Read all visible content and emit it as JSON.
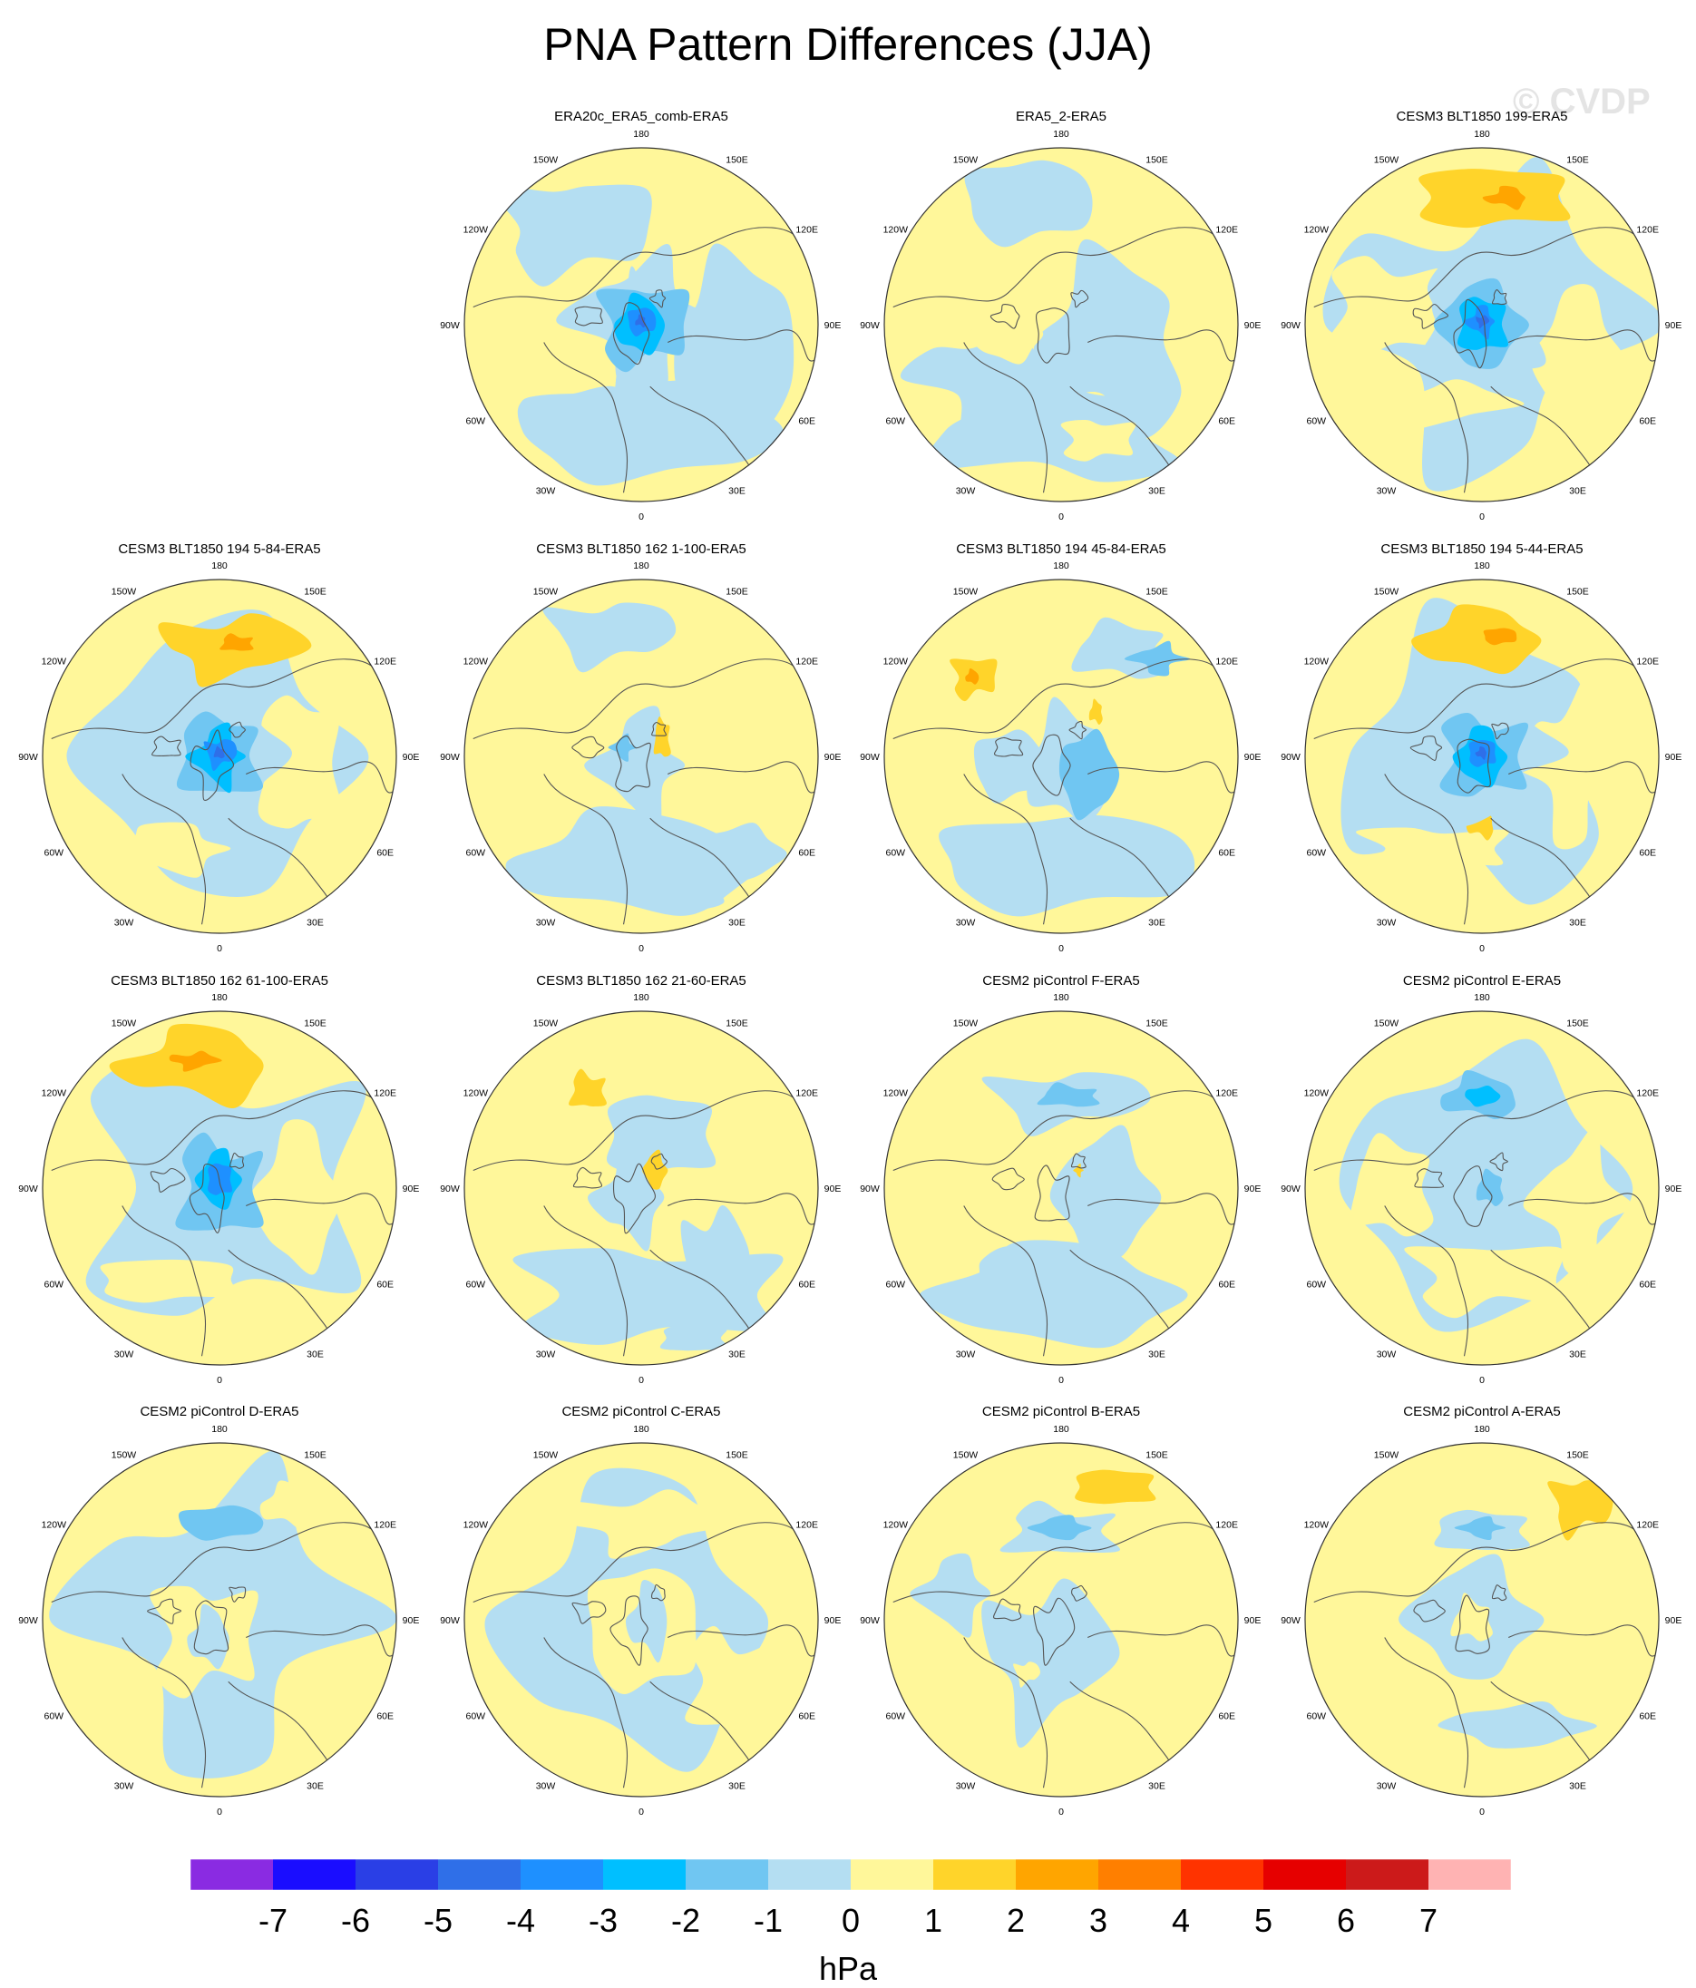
{
  "title": "PNA Pattern Differences (JJA)",
  "watermark": "© CVDP",
  "colorbar": {
    "unit": "hPa",
    "levels": [
      "-7",
      "-6",
      "-5",
      "-4",
      "-3",
      "-2",
      "-1",
      "0",
      "1",
      "2",
      "3",
      "4",
      "5",
      "6",
      "7"
    ],
    "colors": [
      "#8a2be2",
      "#1a0dff",
      "#2a3fe6",
      "#2f6fe8",
      "#1e90ff",
      "#00bfff",
      "#70c6f2",
      "#b4def2",
      "#fff79a",
      "#ffd42a",
      "#ffa500",
      "#ff7f00",
      "#ff3300",
      "#e60000",
      "#cc1a1a",
      "#ffb3b3"
    ]
  },
  "lon_labels": [
    "180",
    "150E",
    "120E",
    "90E",
    "60E",
    "30E",
    "0",
    "30W",
    "60W",
    "90W",
    "120W",
    "150W"
  ],
  "panels": [
    {
      "title": "ERA20c_ERA5_comb-ERA5",
      "row": 0,
      "col": 1
    },
    {
      "title": "ERA5_2-ERA5",
      "row": 0,
      "col": 2
    },
    {
      "title": "CESM3 BLT1850 199-ERA5",
      "row": 0,
      "col": 3
    },
    {
      "title": "CESM3 BLT1850 194 5-84-ERA5",
      "row": 1,
      "col": 0
    },
    {
      "title": "CESM3 BLT1850 162 1-100-ERA5",
      "row": 1,
      "col": 1
    },
    {
      "title": "CESM3 BLT1850 194 45-84-ERA5",
      "row": 1,
      "col": 2
    },
    {
      "title": "CESM3 BLT1850 194 5-44-ERA5",
      "row": 1,
      "col": 3
    },
    {
      "title": "CESM3 BLT1850 162 61-100-ERA5",
      "row": 2,
      "col": 0
    },
    {
      "title": "CESM3 BLT1850 162 21-60-ERA5",
      "row": 2,
      "col": 1
    },
    {
      "title": "CESM2 piControl F-ERA5",
      "row": 2,
      "col": 2
    },
    {
      "title": "CESM2 piControl E-ERA5",
      "row": 2,
      "col": 3
    },
    {
      "title": "CESM2 piControl D-ERA5",
      "row": 3,
      "col": 0
    },
    {
      "title": "CESM2 piControl C-ERA5",
      "row": 3,
      "col": 1
    },
    {
      "title": "CESM2 piControl B-ERA5",
      "row": 3,
      "col": 2
    },
    {
      "title": "CESM2 piControl A-ERA5",
      "row": 3,
      "col": 3
    }
  ]
}
